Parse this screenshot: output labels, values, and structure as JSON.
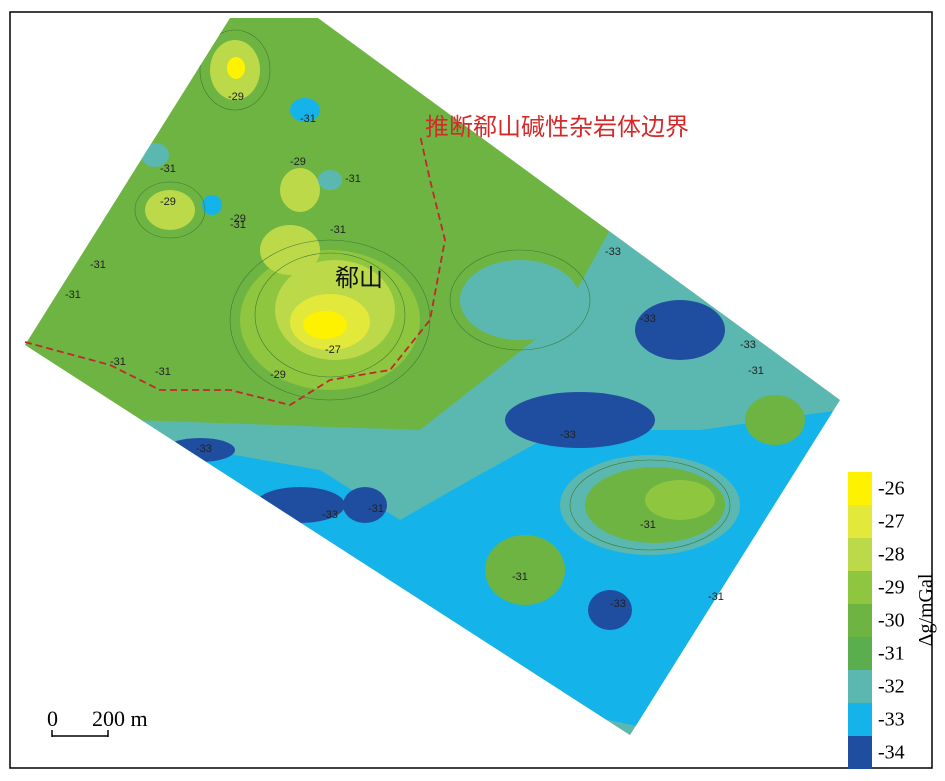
{
  "map": {
    "annotation": "推断郗山碱性杂岩体边界",
    "place_label": "郗山",
    "contour_labels": [
      -29,
      -31,
      -31,
      -29,
      -31,
      -29,
      -31,
      -31,
      -31,
      -31,
      -29,
      -27,
      -29,
      -31,
      -31,
      -33,
      -33,
      -31,
      -33,
      -33,
      -31,
      -33,
      -33,
      -31,
      -31,
      -33,
      -31
    ],
    "scale_bar": {
      "start": "0",
      "end": "200 m"
    },
    "legend": {
      "label": "Δg/mGal",
      "ticks": [
        -26,
        -27,
        -28,
        -29,
        -30,
        -31,
        -32,
        -33,
        -34
      ],
      "colors": [
        "#fff200",
        "#e3e93a",
        "#bcd94a",
        "#8fc63f",
        "#6db443",
        "#5aae4d",
        "#5bb8b0",
        "#14b4ea",
        "#1f4ea1"
      ]
    }
  }
}
